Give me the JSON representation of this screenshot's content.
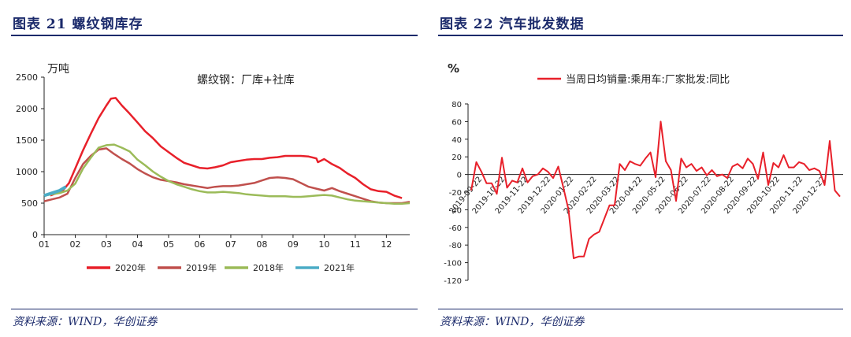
{
  "left": {
    "title": "图表 21   螺纹钢库存",
    "source": "资料来源：WIND，华创证券",
    "chart_data": {
      "type": "line",
      "unit_label": "万吨",
      "annotation": "螺纹钢：厂库+社库",
      "ylim": [
        0,
        2500
      ],
      "yticks": [
        "0",
        "500",
        "1000",
        "1500",
        "2000",
        "2500"
      ],
      "x_ticks": [
        "01",
        "02",
        "03",
        "04",
        "05",
        "06",
        "07",
        "08",
        "09",
        "10",
        "11",
        "12"
      ],
      "xlim": [
        1,
        12.75
      ],
      "series": [
        {
          "name": "2020年",
          "color": "#e8202a",
          "x": [
            1.2,
            1.4,
            1.6,
            1.8,
            2.0,
            2.25,
            2.5,
            2.75,
            3.0,
            3.15,
            3.3,
            3.5,
            3.75,
            4.0,
            4.25,
            4.5,
            4.75,
            5.0,
            5.25,
            5.5,
            5.75,
            6.0,
            6.25,
            6.5,
            6.75,
            7.0,
            7.25,
            7.5,
            7.75,
            8.0,
            8.25,
            8.5,
            8.75,
            9.0,
            9.25,
            9.5,
            9.75,
            9.8,
            10.0,
            10.25,
            10.5,
            10.75,
            11.0,
            11.25,
            11.5,
            11.75,
            12.0,
            12.25,
            12.5
          ],
          "values": [
            620,
            660,
            700,
            820,
            1050,
            1340,
            1600,
            1850,
            2050,
            2160,
            2170,
            2050,
            1920,
            1780,
            1640,
            1530,
            1400,
            1310,
            1220,
            1140,
            1100,
            1060,
            1050,
            1070,
            1100,
            1150,
            1170,
            1190,
            1200,
            1200,
            1220,
            1230,
            1250,
            1250,
            1250,
            1240,
            1210,
            1150,
            1200,
            1120,
            1060,
            970,
            900,
            800,
            720,
            690,
            680,
            620,
            580
          ]
        },
        {
          "name": "2019年",
          "color": "#c0504d",
          "x": [
            1.0,
            1.25,
            1.5,
            1.75,
            2.0,
            2.25,
            2.5,
            2.75,
            3.0,
            3.25,
            3.5,
            3.75,
            4.0,
            4.25,
            4.5,
            4.75,
            5.0,
            5.25,
            5.5,
            5.75,
            6.0,
            6.25,
            6.5,
            6.75,
            7.0,
            7.25,
            7.5,
            7.75,
            8.0,
            8.25,
            8.5,
            8.75,
            9.0,
            9.25,
            9.5,
            9.75,
            10.0,
            10.25,
            10.5,
            10.75,
            11.0,
            11.25,
            11.5,
            11.75,
            12.0,
            12.25,
            12.5,
            12.75
          ],
          "values": [
            530,
            560,
            590,
            650,
            900,
            1120,
            1250,
            1350,
            1370,
            1280,
            1200,
            1130,
            1040,
            970,
            910,
            870,
            850,
            830,
            800,
            780,
            760,
            740,
            760,
            770,
            770,
            780,
            800,
            820,
            860,
            900,
            910,
            900,
            880,
            820,
            760,
            730,
            700,
            740,
            690,
            650,
            610,
            570,
            530,
            510,
            500,
            500,
            500,
            520
          ]
        },
        {
          "name": "2018年",
          "color": "#9bbb59",
          "x": [
            1.0,
            1.25,
            1.5,
            1.75,
            2.0,
            2.25,
            2.5,
            2.75,
            3.0,
            3.25,
            3.5,
            3.75,
            4.0,
            4.25,
            4.5,
            4.75,
            5.0,
            5.25,
            5.5,
            5.75,
            6.0,
            6.25,
            6.5,
            6.75,
            7.0,
            7.25,
            7.5,
            7.75,
            8.0,
            8.25,
            8.5,
            8.75,
            9.0,
            9.25,
            9.5,
            9.75,
            10.0,
            10.25,
            10.5,
            10.75,
            11.0,
            11.25,
            11.5,
            11.75,
            12.0,
            12.25,
            12.5,
            12.75
          ],
          "values": [
            620,
            640,
            660,
            700,
            810,
            1050,
            1220,
            1380,
            1420,
            1430,
            1380,
            1320,
            1190,
            1100,
            1000,
            920,
            850,
            800,
            760,
            720,
            690,
            670,
            670,
            680,
            670,
            660,
            640,
            630,
            620,
            610,
            610,
            610,
            600,
            600,
            610,
            620,
            630,
            620,
            590,
            560,
            540,
            530,
            520,
            510,
            500,
            490,
            490,
            500
          ]
        },
        {
          "name": "2021年",
          "color": "#4bacc6",
          "x": [
            1.0,
            1.25,
            1.5,
            1.7
          ],
          "values": [
            620,
            660,
            700,
            760
          ]
        }
      ]
    }
  },
  "right": {
    "title": "图表 22   汽车批发数据",
    "source": "资料来源：WIND，华创证券",
    "chart_data": {
      "type": "line",
      "unit_label": "%",
      "ylim": [
        -120,
        80
      ],
      "yticks": [
        "80",
        "60",
        "40",
        "20",
        "0",
        "-20",
        "-40",
        "-60",
        "-80",
        "-100",
        "-120"
      ],
      "x_ticks": [
        "2019-09-22",
        "2019-10-22",
        "2019-11-22",
        "2019-12-22",
        "2020-01-22",
        "2020-02-22",
        "2020-03-22",
        "2020-04-22",
        "2020-05-22",
        "2020-06-22",
        "2020-07-22",
        "2020-08-22",
        "2020-09-22",
        "2020-10-22",
        "2020-11-22",
        "2020-12-22"
      ],
      "series": [
        {
          "name": "当周日均销量:乘用车:厂家批发:同比",
          "color": "#e8202a",
          "values": [
            -18,
            14,
            3,
            -10,
            -10,
            -22,
            19,
            -15,
            -7,
            -9,
            7,
            -9,
            -2,
            0,
            7,
            3,
            -4,
            9,
            -15,
            -40,
            -95,
            -93,
            -93,
            -73,
            -68,
            -65,
            -50,
            -35,
            -35,
            12,
            5,
            15,
            12,
            10,
            18,
            25,
            -3,
            60,
            15,
            5,
            -30,
            18,
            8,
            12,
            4,
            8,
            -1,
            5,
            -2,
            0,
            -4,
            9,
            12,
            7,
            18,
            12,
            -5,
            25,
            -12,
            13,
            8,
            22,
            8,
            8,
            14,
            12,
            5,
            7,
            4,
            -12,
            38,
            -18,
            -25
          ]
        }
      ]
    }
  }
}
